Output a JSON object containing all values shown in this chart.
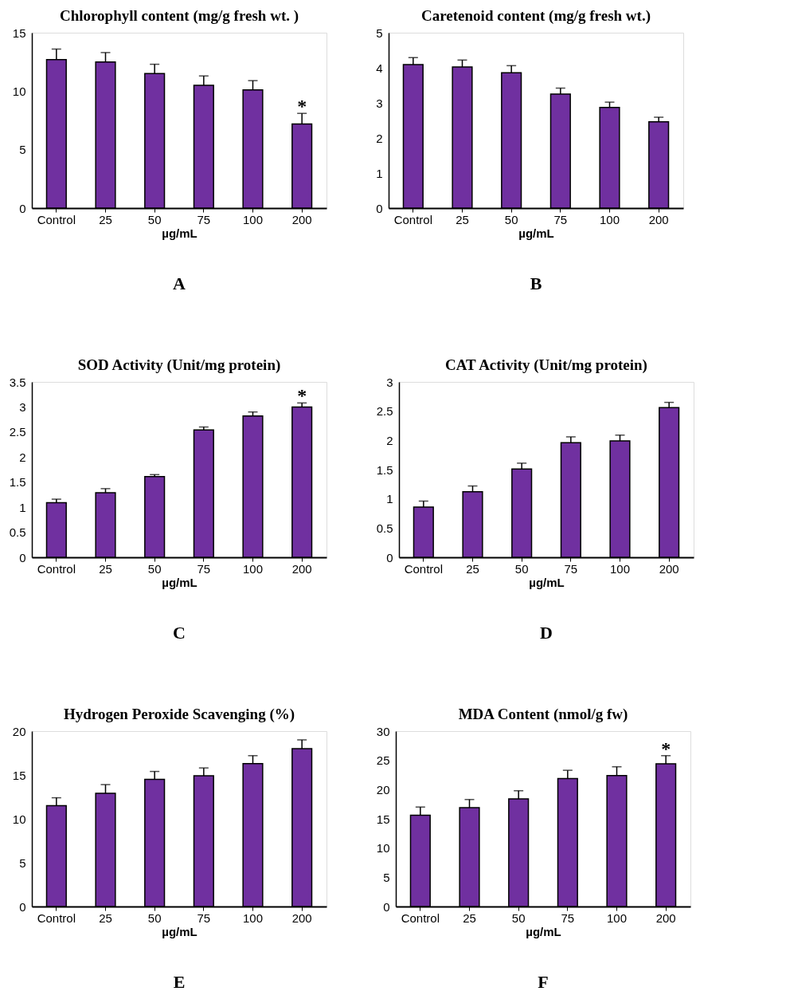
{
  "chart_data": [
    {
      "type": "bar",
      "title": "Chlorophyll content (mg/g  fresh wt. )",
      "xlabel": "µg/mL",
      "categories": [
        "Control",
        "25",
        "50",
        "75",
        "100",
        "200"
      ],
      "values": [
        12.7,
        12.5,
        11.5,
        10.5,
        10.1,
        7.2
      ],
      "errors": [
        [
          12.7,
          13.6
        ],
        [
          12.5,
          13.3
        ],
        [
          11.5,
          12.3
        ],
        [
          10.5,
          11.3
        ],
        [
          10.1,
          10.9
        ],
        [
          7.2,
          8.1
        ]
      ],
      "color": "#7030a0",
      "ylim": [
        0,
        15
      ],
      "yticks": [
        0,
        5,
        10,
        15
      ],
      "annotations": [
        {
          "text": "*",
          "x": "200",
          "y": 7.2
        },
        "A"
      ]
    },
    {
      "type": "bar",
      "title": "Caretenoid content (mg/g fresh wt.)",
      "xlabel": "µg/mL",
      "categories": [
        "Control",
        "25",
        "50",
        "75",
        "100",
        "200"
      ],
      "values": [
        4.09,
        4.02,
        3.86,
        3.25,
        2.87,
        2.46
      ],
      "errors": [
        [
          4.09,
          4.29
        ],
        [
          4.02,
          4.22
        ],
        [
          3.86,
          4.06
        ],
        [
          3.25,
          3.42
        ],
        [
          2.87,
          3.02
        ],
        [
          2.46,
          2.59
        ]
      ],
      "color": "#7030a0",
      "ylim": [
        0,
        5
      ],
      "yticks": [
        0,
        1,
        2,
        3,
        4,
        5
      ],
      "annotations": [
        "B"
      ]
    },
    {
      "type": "bar",
      "title": "SOD Activity  (Unit/mg protein)",
      "xlabel": "µg/mL",
      "categories": [
        "Control",
        "25",
        "50",
        "75",
        "100",
        "200"
      ],
      "values": [
        1.09,
        1.29,
        1.61,
        2.54,
        2.82,
        3.0
      ],
      "errors": [
        [
          1.09,
          1.16
        ],
        [
          1.29,
          1.37
        ],
        [
          1.61,
          1.65
        ],
        [
          2.54,
          2.6
        ],
        [
          2.82,
          2.9
        ],
        [
          3.0,
          3.08
        ]
      ],
      "color": "#7030a0",
      "ylim": [
        0,
        3.5
      ],
      "yticks": [
        0,
        0.5,
        1,
        1.5,
        2,
        2.5,
        3,
        3.5
      ],
      "annotations": [
        {
          "text": "*",
          "x": "200",
          "y": 3.0
        },
        "C"
      ]
    },
    {
      "type": "bar",
      "title": "CAT Activity (Unit/mg protein)",
      "xlabel": "µg/mL",
      "categories": [
        "Control",
        "25",
        "50",
        "75",
        "100",
        "200"
      ],
      "values": [
        0.86,
        1.12,
        1.51,
        1.96,
        1.99,
        2.56
      ],
      "errors": [
        [
          0.86,
          0.96
        ],
        [
          1.12,
          1.22
        ],
        [
          1.51,
          1.61
        ],
        [
          1.96,
          2.06
        ],
        [
          1.99,
          2.09
        ],
        [
          2.56,
          2.65
        ]
      ],
      "color": "#7030a0",
      "ylim": [
        0,
        3
      ],
      "yticks": [
        0,
        0.5,
        1,
        1.5,
        2,
        2.5,
        3
      ],
      "annotations": [
        "D"
      ]
    },
    {
      "type": "bar",
      "title": "Hydrogen Peroxide Scavenging (%)",
      "xlabel": "µg/mL",
      "categories": [
        "Control",
        "25",
        "50",
        "75",
        "100",
        "200"
      ],
      "values": [
        11.5,
        12.9,
        14.5,
        14.9,
        16.3,
        18.0
      ],
      "errors": [
        [
          11.5,
          12.4
        ],
        [
          12.9,
          13.9
        ],
        [
          14.5,
          15.4
        ],
        [
          14.9,
          15.8
        ],
        [
          16.3,
          17.2
        ],
        [
          18.0,
          19.0
        ]
      ],
      "color": "#7030a0",
      "ylim": [
        0,
        20
      ],
      "yticks": [
        0,
        5,
        10,
        15,
        20
      ],
      "annotations": [
        "E"
      ]
    },
    {
      "type": "bar",
      "title": "MDA Content (nmol/g fw)",
      "xlabel": "µg/mL",
      "categories": [
        "Control",
        "25",
        "50",
        "75",
        "100",
        "200"
      ],
      "values": [
        15.6,
        16.9,
        18.4,
        21.9,
        22.4,
        24.4
      ],
      "errors": [
        [
          15.6,
          17.0
        ],
        [
          16.9,
          18.3
        ],
        [
          18.4,
          19.8
        ],
        [
          21.9,
          23.3
        ],
        [
          22.4,
          23.9
        ],
        [
          24.4,
          25.8
        ]
      ],
      "color": "#7030a0",
      "ylim": [
        0,
        30
      ],
      "yticks": [
        0,
        5,
        10,
        15,
        20,
        25,
        30
      ],
      "annotations": [
        {
          "text": "*",
          "x": "200",
          "y": 24.4
        },
        "F"
      ]
    }
  ]
}
